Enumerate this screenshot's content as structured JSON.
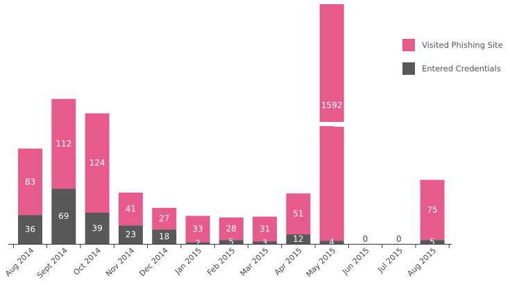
{
  "chart_data": {
    "type": "bar",
    "stacked": true,
    "categories": [
      "Aug 2014",
      "Sept 2014",
      "Oct 2014",
      "Nov 2014",
      "Dec 2014",
      "Jan 2015",
      "Feb 2015",
      "Mar 2015",
      "Apr 2015",
      "May 2015",
      "Jun 2015",
      "Jul 2015",
      "Aug 2015"
    ],
    "series": [
      {
        "name": "Entered Credentials",
        "color": "#58585a",
        "values": [
          36,
          69,
          39,
          23,
          18,
          2,
          5,
          3,
          12,
          4,
          0,
          0,
          5
        ]
      },
      {
        "name": "Visited Phishing Site",
        "color": "#e75a8c",
        "values": [
          83,
          112,
          124,
          41,
          27,
          33,
          28,
          31,
          51,
          1592,
          0,
          0,
          75
        ]
      }
    ],
    "axis_break": {
      "category": "May 2015"
    },
    "legend_position": "right",
    "grid": false,
    "data_labels": true
  }
}
